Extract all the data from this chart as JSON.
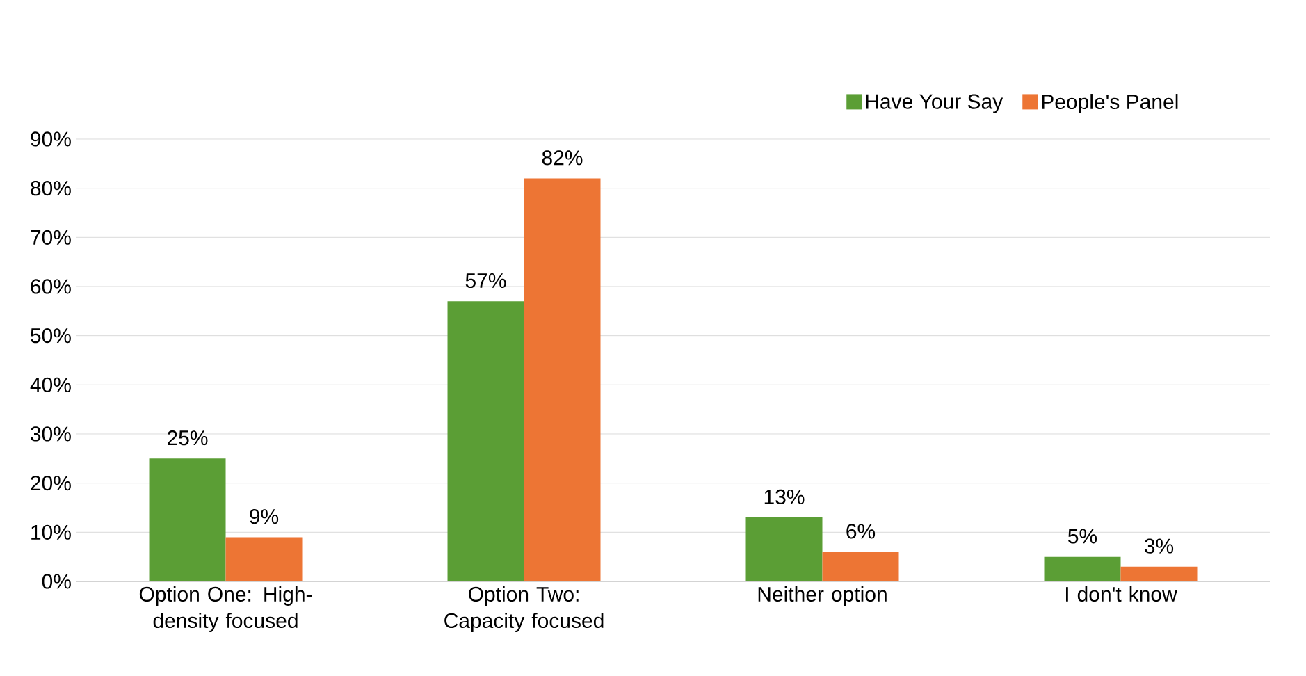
{
  "chart_data": {
    "type": "bar",
    "categories": [
      "Option One: High-density focused",
      "Option Two: Capacity focused",
      "Neither option",
      "I don't know"
    ],
    "series": [
      {
        "name": "Have Your Say",
        "color": "#5b9e35",
        "values": [
          25,
          57,
          13,
          5
        ],
        "value_labels": [
          "25%",
          "57%",
          "13%",
          "5%"
        ]
      },
      {
        "name": "People's Panel",
        "color": "#ed7534",
        "values": [
          9,
          82,
          6,
          3
        ],
        "value_labels": [
          "9%",
          "82%",
          "6%",
          "3%"
        ]
      }
    ],
    "ylim": [
      0,
      90
    ],
    "yticks": [
      {
        "value": 0,
        "label": "0%"
      },
      {
        "value": 10,
        "label": "10%"
      },
      {
        "value": 20,
        "label": "20%"
      },
      {
        "value": 30,
        "label": "30%"
      },
      {
        "value": 40,
        "label": "40%"
      },
      {
        "value": 50,
        "label": "50%"
      },
      {
        "value": 60,
        "label": "60%"
      },
      {
        "value": 70,
        "label": "70%"
      },
      {
        "value": 80,
        "label": "80%"
      },
      {
        "value": 90,
        "label": "90%"
      }
    ],
    "grid": "y",
    "legend": "top right"
  }
}
